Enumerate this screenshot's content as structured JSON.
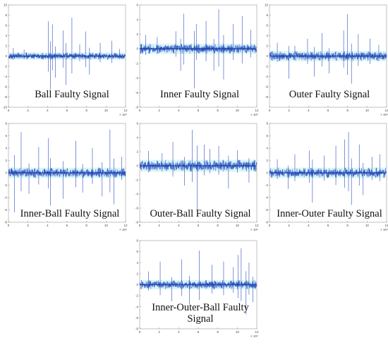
{
  "figure": {
    "panels": [
      {
        "title_lines": [
          "Ball Faulty Signal"
        ],
        "x_ticks": [
          "0",
          "2",
          "4",
          "6",
          "8",
          "10",
          "12"
        ],
        "y_ticks": [
          "10",
          "8",
          "6",
          "4",
          "2",
          "0",
          "-2",
          "-4",
          "-6",
          "-8",
          "-10"
        ],
        "x_exponent": "× 10⁴"
      },
      {
        "title_lines": [
          "Inner Faulty Signal"
        ],
        "x_ticks": [
          "0",
          "2",
          "4",
          "6",
          "8",
          "10",
          "12"
        ],
        "y_ticks": [
          "6",
          "4",
          "2",
          "0",
          "-2",
          "-4",
          "-6",
          "-8"
        ],
        "x_exponent": "× 10⁴"
      },
      {
        "title_lines": [
          "Outer Faulty Signal"
        ],
        "x_ticks": [
          "0",
          "2",
          "4",
          "6",
          "8",
          "10",
          "12"
        ],
        "y_ticks": [
          "10",
          "8",
          "6",
          "4",
          "2",
          "0",
          "-2",
          "-4",
          "-6",
          "-8"
        ],
        "x_exponent": "× 10⁴"
      },
      {
        "title_lines": [
          "Inner-Ball Faulty Signal"
        ],
        "x_ticks": [
          "0",
          "2",
          "4",
          "6",
          "8",
          "10",
          "12"
        ],
        "y_ticks": [
          "8",
          "6",
          "4",
          "2",
          "0",
          "-2",
          "-4",
          "-6",
          "-8"
        ],
        "x_exponent": "× 10⁴"
      },
      {
        "title_lines": [
          "Outer-Ball Faulty Signal"
        ],
        "x_ticks": [
          "0",
          "2",
          "4",
          "6",
          "8",
          "10",
          "12"
        ],
        "y_ticks": [
          "6",
          "4",
          "2",
          "0",
          "-2",
          "-4",
          "-6",
          "-8"
        ],
        "x_exponent": "× 10⁴"
      },
      {
        "title_lines": [
          "Inner-Outer Faulty Signal"
        ],
        "x_ticks": [
          "0",
          "2",
          "4",
          "6",
          "8",
          "10",
          "12"
        ],
        "y_ticks": [
          "8",
          "6",
          "4",
          "2",
          "0",
          "-2",
          "-4",
          "-6",
          "-8"
        ],
        "x_exponent": "× 10⁴"
      },
      {
        "title_lines": [
          "Inner-Outer-Ball Faulty",
          "Signal"
        ],
        "x_ticks": [
          "0",
          "2",
          "4",
          "6",
          "8",
          "10",
          "12"
        ],
        "y_ticks": [
          "8",
          "6",
          "4",
          "2",
          "0",
          "-2",
          "-4",
          "-6",
          "-8"
        ],
        "x_exponent": "× 10⁴"
      }
    ]
  },
  "chart_data": [
    {
      "type": "line",
      "title": "Ball Faulty Signal",
      "xlabel": "",
      "ylabel": "",
      "x_scale": "× 10⁴",
      "xlim": [
        0,
        12
      ],
      "ylim": [
        -10,
        10
      ],
      "grid": false,
      "color": "#2a4fbf",
      "series": [
        {
          "baseline_amplitude": 0.5,
          "spikes": [
            {
              "x": 0.5,
              "y": 1.6
            },
            {
              "x": 1.6,
              "y": 1.3
            },
            {
              "x": 4.1,
              "y": 6.8
            },
            {
              "x": 4.3,
              "y": -6.5
            },
            {
              "x": 4.5,
              "y": 6.2
            },
            {
              "x": 4.8,
              "y": -4.2
            },
            {
              "x": 5.6,
              "y": 5.0
            },
            {
              "x": 5.9,
              "y": -5.6
            },
            {
              "x": 6.5,
              "y": 7.5
            },
            {
              "x": 7.3,
              "y": 2.3
            },
            {
              "x": 7.9,
              "y": 4.8
            },
            {
              "x": 8.3,
              "y": -3.6
            },
            {
              "x": 9.4,
              "y": 2.6
            },
            {
              "x": 10.6,
              "y": 3.0
            },
            {
              "x": 11.4,
              "y": 1.4
            }
          ]
        }
      ]
    },
    {
      "type": "line",
      "title": "Inner Faulty Signal",
      "xlabel": "",
      "ylabel": "",
      "x_scale": "× 10⁴",
      "xlim": [
        0,
        12
      ],
      "ylim": [
        -8,
        6
      ],
      "grid": false,
      "color": "#2a4fbf",
      "series": [
        {
          "baseline_amplitude": 0.5,
          "spikes": [
            {
              "x": 0.6,
              "y": 1.9
            },
            {
              "x": 1.8,
              "y": 1.6
            },
            {
              "x": 3.7,
              "y": 2.4
            },
            {
              "x": 4.2,
              "y": -3.0
            },
            {
              "x": 4.5,
              "y": 4.8
            },
            {
              "x": 5.6,
              "y": -5.4
            },
            {
              "x": 5.8,
              "y": 3.4
            },
            {
              "x": 6.8,
              "y": 3.8
            },
            {
              "x": 7.6,
              "y": -3.0
            },
            {
              "x": 8.1,
              "y": 5.4
            },
            {
              "x": 8.6,
              "y": -4.2
            },
            {
              "x": 9.6,
              "y": 3.4
            },
            {
              "x": 10.5,
              "y": 4.5
            },
            {
              "x": 11.4,
              "y": 2.6
            }
          ]
        }
      ]
    },
    {
      "type": "line",
      "title": "Outer Faulty Signal",
      "xlabel": "",
      "ylabel": "",
      "x_scale": "× 10⁴",
      "xlim": [
        0,
        12
      ],
      "ylim": [
        -10,
        10
      ],
      "grid": false,
      "color": "#2a4fbf",
      "series": [
        {
          "baseline_amplitude": 0.7,
          "spikes": [
            {
              "x": 0.8,
              "y": 2.6
            },
            {
              "x": 2.0,
              "y": -4.4
            },
            {
              "x": 2.6,
              "y": 2.0
            },
            {
              "x": 3.9,
              "y": 3.4
            },
            {
              "x": 4.6,
              "y": -4.0
            },
            {
              "x": 5.4,
              "y": 4.5
            },
            {
              "x": 6.1,
              "y": -3.4
            },
            {
              "x": 7.6,
              "y": 5.0
            },
            {
              "x": 8.0,
              "y": 8.2
            },
            {
              "x": 8.4,
              "y": -5.4
            },
            {
              "x": 9.1,
              "y": 4.3
            },
            {
              "x": 10.3,
              "y": 3.4
            },
            {
              "x": 11.2,
              "y": 2.2
            }
          ]
        }
      ]
    },
    {
      "type": "line",
      "title": "Inner-Ball Faulty Signal",
      "xlabel": "",
      "ylabel": "",
      "x_scale": "× 10⁴",
      "xlim": [
        0,
        12
      ],
      "ylim": [
        -8,
        8
      ],
      "grid": false,
      "color": "#2a4fbf",
      "series": [
        {
          "baseline_amplitude": 0.6,
          "spikes": [
            {
              "x": 0.6,
              "y": -6.4
            },
            {
              "x": 1.3,
              "y": 6.6
            },
            {
              "x": 2.1,
              "y": -3.4
            },
            {
              "x": 3.1,
              "y": 4.2
            },
            {
              "x": 4.1,
              "y": 5.6
            },
            {
              "x": 4.3,
              "y": -5.3
            },
            {
              "x": 5.6,
              "y": -4.2
            },
            {
              "x": 6.9,
              "y": 5.2
            },
            {
              "x": 7.6,
              "y": -3.2
            },
            {
              "x": 8.6,
              "y": 4.0
            },
            {
              "x": 9.6,
              "y": -3.8
            },
            {
              "x": 10.4,
              "y": 7.0
            },
            {
              "x": 10.8,
              "y": -5.1
            },
            {
              "x": 11.6,
              "y": 2.6
            }
          ]
        }
      ]
    },
    {
      "type": "line",
      "title": "Outer-Ball Faulty Signal",
      "xlabel": "",
      "ylabel": "",
      "x_scale": "× 10⁴",
      "xlim": [
        0,
        12
      ],
      "ylim": [
        -8,
        6
      ],
      "grid": false,
      "color": "#2a4fbf",
      "series": [
        {
          "baseline_amplitude": 0.6,
          "spikes": [
            {
              "x": 0.9,
              "y": 2.1
            },
            {
              "x": 2.3,
              "y": 1.8
            },
            {
              "x": 3.4,
              "y": 3.4
            },
            {
              "x": 4.6,
              "y": -2.8
            },
            {
              "x": 5.4,
              "y": 5.1
            },
            {
              "x": 5.9,
              "y": -6.4
            },
            {
              "x": 6.6,
              "y": 3.0
            },
            {
              "x": 7.2,
              "y": 2.4
            },
            {
              "x": 8.1,
              "y": 2.8
            },
            {
              "x": 9.1,
              "y": -3.2
            },
            {
              "x": 10.0,
              "y": 2.2
            },
            {
              "x": 11.2,
              "y": -2.4
            }
          ]
        }
      ]
    },
    {
      "type": "line",
      "title": "Inner-Outer Faulty Signal",
      "xlabel": "",
      "ylabel": "",
      "x_scale": "× 10⁴",
      "xlim": [
        0,
        12
      ],
      "ylim": [
        -8,
        8
      ],
      "grid": false,
      "color": "#2a4fbf",
      "series": [
        {
          "baseline_amplitude": 0.6,
          "spikes": [
            {
              "x": 0.8,
              "y": 2.2
            },
            {
              "x": 1.9,
              "y": -2.6
            },
            {
              "x": 2.6,
              "y": 3.0
            },
            {
              "x": 4.1,
              "y": 3.6
            },
            {
              "x": 4.4,
              "y": -4.8
            },
            {
              "x": 5.6,
              "y": 2.8
            },
            {
              "x": 6.8,
              "y": 4.4
            },
            {
              "x": 7.7,
              "y": 5.4
            },
            {
              "x": 8.1,
              "y": 6.6
            },
            {
              "x": 8.4,
              "y": -5.2
            },
            {
              "x": 9.2,
              "y": 4.6
            },
            {
              "x": 9.6,
              "y": -3.6
            },
            {
              "x": 10.5,
              "y": 2.6
            },
            {
              "x": 11.3,
              "y": 3.0
            }
          ]
        }
      ]
    },
    {
      "type": "line",
      "title": "Inner-Outer-Ball Faulty Signal",
      "xlabel": "",
      "ylabel": "",
      "x_scale": "× 10⁴",
      "xlim": [
        0,
        12
      ],
      "ylim": [
        -8,
        8
      ],
      "grid": false,
      "color": "#2a4fbf",
      "series": [
        {
          "baseline_amplitude": 0.6,
          "spikes": [
            {
              "x": 0.9,
              "y": 2.4
            },
            {
              "x": 2.1,
              "y": 4.2
            },
            {
              "x": 3.3,
              "y": -3.0
            },
            {
              "x": 4.3,
              "y": 4.6
            },
            {
              "x": 5.1,
              "y": -3.6
            },
            {
              "x": 6.1,
              "y": 6.2
            },
            {
              "x": 7.4,
              "y": 3.6
            },
            {
              "x": 8.6,
              "y": 4.2
            },
            {
              "x": 9.6,
              "y": 3.2
            },
            {
              "x": 10.1,
              "y": 5.4
            },
            {
              "x": 10.4,
              "y": 6.6
            },
            {
              "x": 10.9,
              "y": -5.4
            },
            {
              "x": 11.2,
              "y": 4.0
            },
            {
              "x": 11.6,
              "y": -3.2
            }
          ]
        }
      ]
    }
  ]
}
